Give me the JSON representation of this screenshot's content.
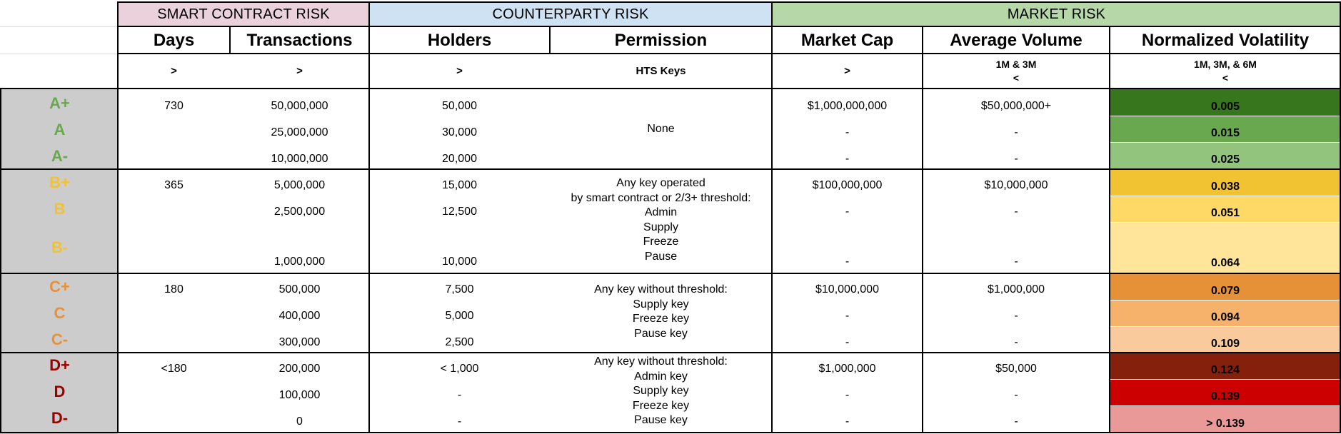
{
  "groups": {
    "smart_contract": "SMART CONTRACT RISK",
    "counterparty": "COUNTERPARTY RISK",
    "market": "MARKET RISK"
  },
  "columns": {
    "days": "Days",
    "transactions": "Transactions",
    "holders": "Holders",
    "permission": "Permission",
    "market_cap": "Market Cap",
    "average_volume": "Average Volume",
    "normalized_volatility": "Normalized Volatility"
  },
  "subheaders": {
    "days": ">",
    "transactions": ">",
    "holders": ">",
    "permission": "HTS Keys",
    "market_cap": ">",
    "average_volume_line1": "1M & 3M",
    "average_volume_line2": "<",
    "volatility_line1": "1M, 3M, & 6M",
    "volatility_line2": "<"
  },
  "colors": {
    "smart_contract_header": "#ead1dc",
    "counterparty_header": "#cfe2f3",
    "market_header": "#b6d7a8",
    "grade_bg": "#cccccc",
    "grade_a": "#6aa84f",
    "grade_b": "#f1c232",
    "grade_c": "#e69138",
    "grade_d": "#990000"
  },
  "grades": [
    "A+",
    "A",
    "A-",
    "B+",
    "B",
    "B-",
    "C+",
    "C",
    "C-",
    "D+",
    "D",
    "D-"
  ],
  "days": [
    "730",
    "365",
    "180",
    "<180"
  ],
  "transactions": [
    "50,000,000",
    "25,000,000",
    "10,000,000",
    "5,000,000",
    "2,500,000",
    "1,000,000",
    "500,000",
    "400,000",
    "300,000",
    "200,000",
    "100,000",
    "0"
  ],
  "holders": [
    "50,000",
    "30,000",
    "20,000",
    "15,000",
    "12,500",
    "10,000",
    "7,500",
    "5,000",
    "2,500",
    "< 1,000",
    "-",
    "-"
  ],
  "permission": {
    "a": "None",
    "b": [
      "Any key operated",
      "by smart contract or 2/3+ threshold:",
      "Admin",
      "Supply",
      "Freeze",
      "Pause"
    ],
    "c": [
      "Any key without threshold:",
      "Supply key",
      "Freeze key",
      "Pause key"
    ],
    "d": [
      "Any key without threshold:",
      "Admin key",
      "Supply key",
      "Freeze key",
      "Pause key"
    ]
  },
  "market_cap": [
    "$1,000,000,000",
    "-",
    "-",
    "$100,000,000",
    "-",
    "-",
    "$10,000,000",
    "-",
    "-",
    "$1,000,000",
    "-",
    "-"
  ],
  "average_volume": [
    "$50,000,000+",
    "-",
    "-",
    "$10,000,000",
    "-",
    "-",
    "$1,000,000",
    "-",
    "-",
    "$50,000",
    "-",
    "-"
  ],
  "volatility": [
    {
      "value": "0.005",
      "color": "#38761d"
    },
    {
      "value": "0.015",
      "color": "#6aa84f"
    },
    {
      "value": "0.025",
      "color": "#93c47d"
    },
    {
      "value": "0.038",
      "color": "#f1c232"
    },
    {
      "value": "0.051",
      "color": "#ffd966"
    },
    {
      "value": "0.064",
      "color": "#ffe599"
    },
    {
      "value": "0.079",
      "color": "#e69138"
    },
    {
      "value": "0.094",
      "color": "#f6b26b"
    },
    {
      "value": "0.109",
      "color": "#f9cb9c"
    },
    {
      "value": "0.124",
      "color": "#85200c"
    },
    {
      "value": "0.139",
      "color": "#cc0000"
    },
    {
      "value": "> 0.139",
      "color": "#ea9999"
    }
  ]
}
